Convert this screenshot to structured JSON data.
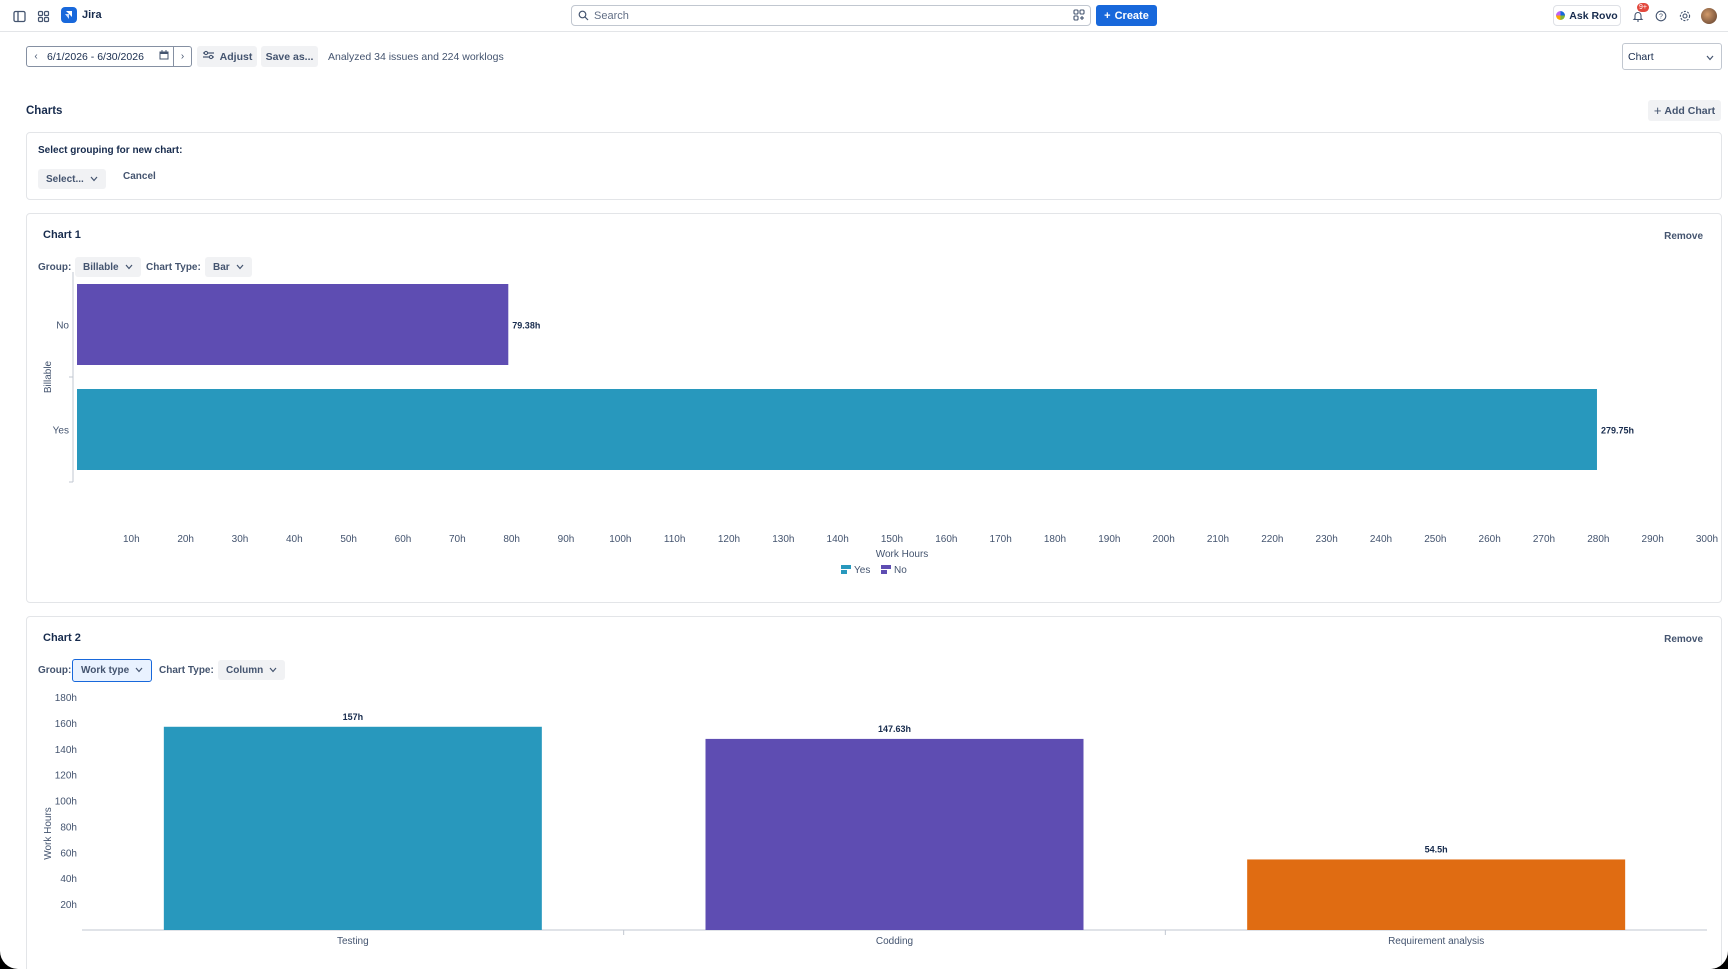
{
  "topnav": {
    "app_name": "Jira",
    "search_placeholder": "Search",
    "create_label": "Create",
    "ask_rovo_label": "Ask Rovo",
    "notifications_badge": "9+"
  },
  "toolbar": {
    "date_range": "6/1/2026 - 6/30/2026",
    "adjust_label": "Adjust",
    "save_as_label": "Save as...",
    "analyzed_text": "Analyzed 34 issues and 224 worklogs",
    "view_select": "Chart"
  },
  "charts_section": {
    "title": "Charts",
    "add_chart_label": "Add Chart",
    "new_chart": {
      "prompt": "Select grouping for new chart:",
      "select_label": "Select...",
      "cancel_label": "Cancel"
    }
  },
  "chart1": {
    "title": "Chart 1",
    "remove_label": "Remove",
    "group_label": "Group:",
    "group_value": "Billable",
    "chart_type_label": "Chart Type:",
    "chart_type_value": "Bar"
  },
  "chart2": {
    "title": "Chart 2",
    "remove_label": "Remove",
    "group_label": "Group:",
    "group_value": "Work type",
    "chart_type_label": "Chart Type:",
    "chart_type_value": "Column"
  },
  "colors": {
    "accent": "#1868db",
    "teal": "#2898bd",
    "purple": "#5e4db2",
    "orange": "#e06c12"
  },
  "chart_data": [
    {
      "type": "bar",
      "orientation": "horizontal",
      "categories": [
        "No",
        "Yes"
      ],
      "values": [
        79.38,
        279.75
      ],
      "value_labels": [
        "79.38h",
        "279.75h"
      ],
      "colors": [
        "#5e4db2",
        "#2898bd"
      ],
      "xlabel": "Work Hours",
      "ylabel": "Billable",
      "xlim": [
        0,
        300
      ],
      "x_ticks": [
        "10h",
        "20h",
        "30h",
        "40h",
        "50h",
        "60h",
        "70h",
        "80h",
        "90h",
        "100h",
        "110h",
        "120h",
        "130h",
        "140h",
        "150h",
        "160h",
        "170h",
        "180h",
        "190h",
        "200h",
        "210h",
        "220h",
        "230h",
        "240h",
        "250h",
        "260h",
        "270h",
        "280h",
        "290h",
        "300h"
      ],
      "legend": [
        {
          "name": "Yes",
          "color": "#2898bd"
        },
        {
          "name": "No",
          "color": "#5e4db2"
        }
      ],
      "legend_position": "bottom"
    },
    {
      "type": "bar",
      "orientation": "vertical",
      "categories": [
        "Testing",
        "Codding",
        "Requirement analysis"
      ],
      "values": [
        157,
        147.63,
        54.5
      ],
      "value_labels": [
        "157h",
        "147.63h",
        "54.5h"
      ],
      "colors": [
        "#2898bd",
        "#5e4db2",
        "#e06c12"
      ],
      "ylabel": "Work Hours",
      "ylim": [
        0,
        180
      ],
      "y_ticks": [
        "20h",
        "40h",
        "60h",
        "80h",
        "100h",
        "120h",
        "140h",
        "160h",
        "180h"
      ]
    }
  ]
}
